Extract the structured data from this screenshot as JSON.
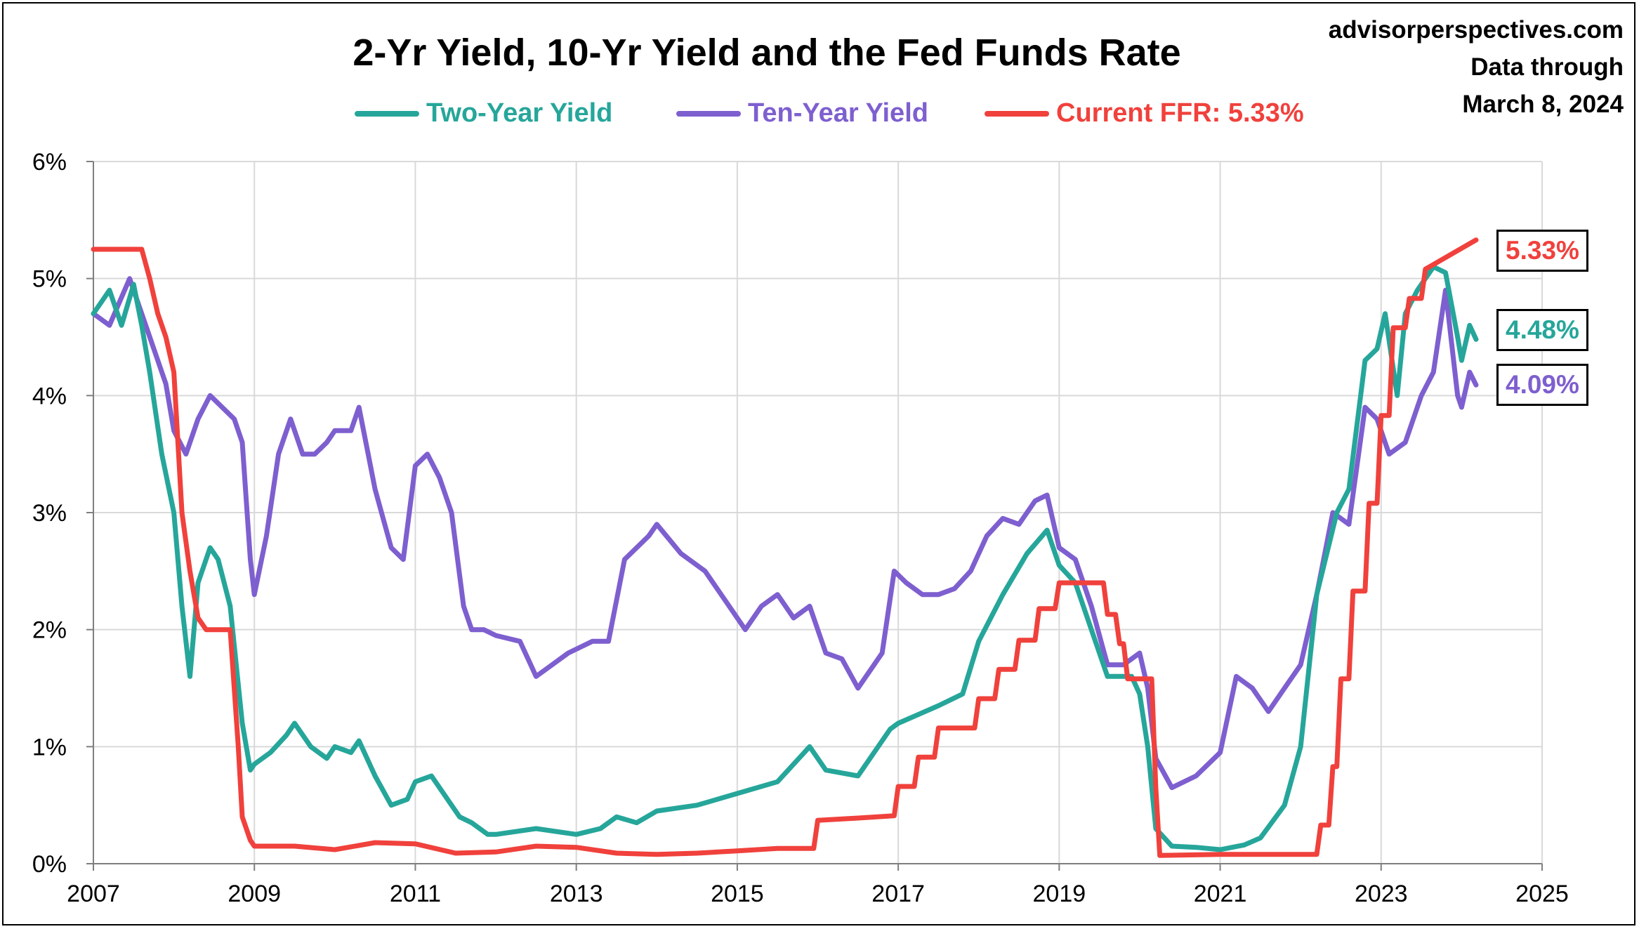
{
  "source": {
    "site": "advisorperspectives.com",
    "line1": "Data through",
    "line2": "March 8, 2024"
  },
  "colors": {
    "two_year": "#26a69a",
    "ten_year": "#7e5fcf",
    "ffr": "#f0413c",
    "grid": "#d9d9d9",
    "axis": "#7f7f7f"
  },
  "chart_data": {
    "type": "line",
    "title": "2-Yr Yield, 10-Yr Yield and the Fed Funds Rate",
    "xlabel": "",
    "ylabel": "",
    "xlim": [
      2007,
      2025
    ],
    "ylim": [
      0,
      6
    ],
    "x_ticks": [
      "2007",
      "2009",
      "2011",
      "2013",
      "2015",
      "2017",
      "2019",
      "2021",
      "2023",
      "2025"
    ],
    "y_ticks": [
      "0%",
      "1%",
      "2%",
      "3%",
      "4%",
      "5%",
      "6%"
    ],
    "grid": true,
    "legend_position": "top-center",
    "end_labels": [
      {
        "series": "Current FFR: 5.33%",
        "text": "5.33%"
      },
      {
        "series": "Two-Year Yield",
        "text": "4.48%"
      },
      {
        "series": "Ten-Year Yield",
        "text": "4.09%"
      }
    ],
    "series": [
      {
        "name": "Two-Year Yield",
        "x": [
          2007.0,
          2007.2,
          2007.35,
          2007.5,
          2007.6,
          2007.7,
          2007.85,
          2008.0,
          2008.1,
          2008.2,
          2008.3,
          2008.45,
          2008.55,
          2008.7,
          2008.85,
          2008.95,
          2009.0,
          2009.2,
          2009.4,
          2009.5,
          2009.7,
          2009.9,
          2010.0,
          2010.2,
          2010.3,
          2010.5,
          2010.7,
          2010.9,
          2011.0,
          2011.2,
          2011.4,
          2011.55,
          2011.7,
          2011.9,
          2012.0,
          2012.5,
          2013.0,
          2013.3,
          2013.5,
          2013.75,
          2014.0,
          2014.5,
          2015.0,
          2015.5,
          2015.9,
          2016.1,
          2016.5,
          2016.9,
          2017.0,
          2017.5,
          2017.8,
          2018.0,
          2018.3,
          2018.6,
          2018.85,
          2019.0,
          2019.2,
          2019.4,
          2019.6,
          2019.9,
          2020.0,
          2020.1,
          2020.2,
          2020.4,
          2020.7,
          2021.0,
          2021.3,
          2021.5,
          2021.8,
          2022.0,
          2022.2,
          2022.45,
          2022.6,
          2022.8,
          2022.95,
          2023.05,
          2023.2,
          2023.3,
          2023.45,
          2023.65,
          2023.8,
          2023.95,
          2024.0,
          2024.1,
          2024.18
        ],
        "values": [
          4.7,
          4.9,
          4.6,
          4.95,
          4.6,
          4.2,
          3.5,
          3.0,
          2.2,
          1.6,
          2.4,
          2.7,
          2.6,
          2.2,
          1.2,
          0.8,
          0.85,
          0.95,
          1.1,
          1.2,
          1.0,
          0.9,
          1.0,
          0.95,
          1.05,
          0.75,
          0.5,
          0.55,
          0.7,
          0.75,
          0.55,
          0.4,
          0.35,
          0.25,
          0.25,
          0.3,
          0.25,
          0.3,
          0.4,
          0.35,
          0.45,
          0.5,
          0.6,
          0.7,
          1.0,
          0.8,
          0.75,
          1.15,
          1.2,
          1.35,
          1.45,
          1.9,
          2.3,
          2.65,
          2.85,
          2.55,
          2.4,
          2.0,
          1.6,
          1.6,
          1.45,
          1.0,
          0.3,
          0.15,
          0.14,
          0.12,
          0.16,
          0.22,
          0.5,
          1.0,
          2.3,
          3.0,
          3.2,
          4.3,
          4.4,
          4.7,
          4.0,
          4.7,
          4.9,
          5.1,
          5.05,
          4.5,
          4.3,
          4.6,
          4.48
        ]
      },
      {
        "name": "Ten-Year Yield",
        "x": [
          2007.0,
          2007.2,
          2007.45,
          2007.6,
          2007.75,
          2007.9,
          2008.0,
          2008.15,
          2008.3,
          2008.45,
          2008.6,
          2008.75,
          2008.85,
          2008.95,
          2009.0,
          2009.15,
          2009.3,
          2009.45,
          2009.6,
          2009.75,
          2009.9,
          2010.0,
          2010.2,
          2010.3,
          2010.5,
          2010.7,
          2010.85,
          2011.0,
          2011.15,
          2011.3,
          2011.45,
          2011.6,
          2011.7,
          2011.85,
          2012.0,
          2012.3,
          2012.5,
          2012.7,
          2012.9,
          2013.2,
          2013.4,
          2013.6,
          2013.9,
          2014.0,
          2014.3,
          2014.6,
          2014.9,
          2015.1,
          2015.3,
          2015.5,
          2015.7,
          2015.9,
          2016.1,
          2016.3,
          2016.5,
          2016.8,
          2016.95,
          2017.1,
          2017.3,
          2017.5,
          2017.7,
          2017.9,
          2018.1,
          2018.3,
          2018.5,
          2018.7,
          2018.85,
          2019.0,
          2019.2,
          2019.4,
          2019.6,
          2019.8,
          2020.0,
          2020.1,
          2020.2,
          2020.4,
          2020.7,
          2021.0,
          2021.2,
          2021.4,
          2021.6,
          2021.8,
          2022.0,
          2022.2,
          2022.4,
          2022.6,
          2022.8,
          2022.95,
          2023.1,
          2023.3,
          2023.5,
          2023.65,
          2023.8,
          2023.95,
          2024.0,
          2024.1,
          2024.18
        ],
        "values": [
          4.7,
          4.6,
          5.0,
          4.7,
          4.4,
          4.1,
          3.7,
          3.5,
          3.8,
          4.0,
          3.9,
          3.8,
          3.6,
          2.6,
          2.3,
          2.8,
          3.5,
          3.8,
          3.5,
          3.5,
          3.6,
          3.7,
          3.7,
          3.9,
          3.2,
          2.7,
          2.6,
          3.4,
          3.5,
          3.3,
          3.0,
          2.2,
          2.0,
          2.0,
          1.95,
          1.9,
          1.6,
          1.7,
          1.8,
          1.9,
          1.9,
          2.6,
          2.8,
          2.9,
          2.65,
          2.5,
          2.2,
          2.0,
          2.2,
          2.3,
          2.1,
          2.2,
          1.8,
          1.75,
          1.5,
          1.8,
          2.5,
          2.4,
          2.3,
          2.3,
          2.35,
          2.5,
          2.8,
          2.95,
          2.9,
          3.1,
          3.15,
          2.7,
          2.6,
          2.2,
          1.7,
          1.7,
          1.8,
          1.5,
          0.9,
          0.65,
          0.75,
          0.95,
          1.6,
          1.5,
          1.3,
          1.5,
          1.7,
          2.3,
          3.0,
          2.9,
          3.9,
          3.8,
          3.5,
          3.6,
          4.0,
          4.2,
          4.9,
          4.0,
          3.9,
          4.2,
          4.09
        ]
      },
      {
        "name": "Current FFR: 5.33%",
        "x": [
          2007.0,
          2007.6,
          2007.7,
          2007.8,
          2007.9,
          2008.0,
          2008.1,
          2008.2,
          2008.3,
          2008.4,
          2008.7,
          2008.8,
          2008.85,
          2008.95,
          2009.0,
          2009.5,
          2010.0,
          2010.5,
          2011.0,
          2011.5,
          2012.0,
          2012.5,
          2013.0,
          2013.5,
          2014.0,
          2014.5,
          2015.0,
          2015.5,
          2015.95,
          2016.0,
          2016.5,
          2016.95,
          2017.0,
          2017.2,
          2017.25,
          2017.45,
          2017.5,
          2017.95,
          2018.0,
          2018.2,
          2018.25,
          2018.45,
          2018.5,
          2018.7,
          2018.75,
          2018.95,
          2019.0,
          2019.55,
          2019.6,
          2019.7,
          2019.75,
          2019.8,
          2019.85,
          2020.15,
          2020.2,
          2020.25,
          2021.0,
          2022.0,
          2022.2,
          2022.25,
          2022.35,
          2022.4,
          2022.45,
          2022.5,
          2022.6,
          2022.65,
          2022.8,
          2022.85,
          2022.95,
          2023.0,
          2023.1,
          2023.15,
          2023.3,
          2023.35,
          2023.5,
          2023.55,
          2024.18
        ],
        "values": [
          5.25,
          5.25,
          5.0,
          4.7,
          4.5,
          4.2,
          3.0,
          2.5,
          2.1,
          2.0,
          2.0,
          1.0,
          0.4,
          0.2,
          0.15,
          0.15,
          0.12,
          0.18,
          0.17,
          0.09,
          0.1,
          0.15,
          0.14,
          0.09,
          0.08,
          0.09,
          0.11,
          0.13,
          0.13,
          0.37,
          0.39,
          0.41,
          0.66,
          0.66,
          0.91,
          0.91,
          1.16,
          1.16,
          1.41,
          1.41,
          1.66,
          1.66,
          1.91,
          1.91,
          2.18,
          2.18,
          2.4,
          2.4,
          2.13,
          2.13,
          1.88,
          1.88,
          1.58,
          1.58,
          0.65,
          0.07,
          0.08,
          0.08,
          0.08,
          0.33,
          0.33,
          0.83,
          0.83,
          1.58,
          1.58,
          2.33,
          2.33,
          3.08,
          3.08,
          3.83,
          3.83,
          4.58,
          4.58,
          4.83,
          4.83,
          5.08,
          5.33
        ]
      }
    ]
  }
}
